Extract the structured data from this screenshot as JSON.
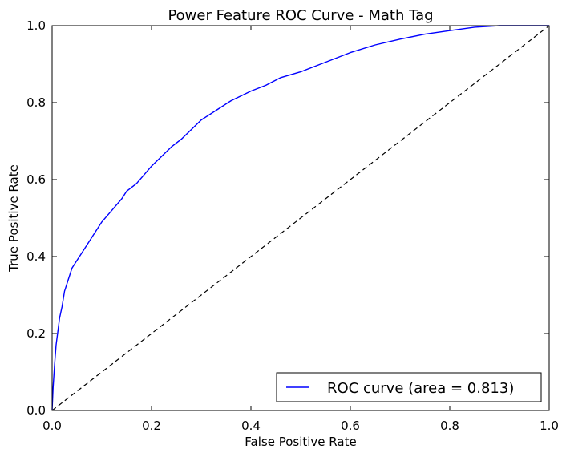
{
  "chart_data": {
    "type": "line",
    "title": "Power Feature ROC Curve - Math Tag",
    "xlabel": "False Positive Rate",
    "ylabel": "True Positive Rate",
    "xlim": [
      0.0,
      1.0
    ],
    "ylim": [
      0.0,
      1.0
    ],
    "xticks": [
      "0.0",
      "0.2",
      "0.4",
      "0.6",
      "0.8",
      "1.0"
    ],
    "yticks": [
      "0.0",
      "0.2",
      "0.4",
      "0.6",
      "0.8",
      "1.0"
    ],
    "grid": false,
    "legend_position": "lower-right",
    "series": [
      {
        "name": "ROC curve (area = 0.813)",
        "color": "#0000ff",
        "style": "solid",
        "x": [
          0.0,
          0.002,
          0.005,
          0.008,
          0.012,
          0.015,
          0.02,
          0.025,
          0.03,
          0.04,
          0.05,
          0.06,
          0.07,
          0.08,
          0.09,
          0.1,
          0.12,
          0.14,
          0.15,
          0.17,
          0.19,
          0.2,
          0.22,
          0.24,
          0.26,
          0.28,
          0.3,
          0.33,
          0.36,
          0.4,
          0.43,
          0.46,
          0.5,
          0.55,
          0.6,
          0.65,
          0.7,
          0.75,
          0.8,
          0.85,
          0.9,
          0.95,
          1.0
        ],
        "y": [
          0.0,
          0.06,
          0.12,
          0.17,
          0.21,
          0.24,
          0.27,
          0.31,
          0.33,
          0.37,
          0.39,
          0.41,
          0.43,
          0.45,
          0.47,
          0.49,
          0.52,
          0.55,
          0.57,
          0.59,
          0.62,
          0.635,
          0.66,
          0.685,
          0.705,
          0.73,
          0.755,
          0.78,
          0.805,
          0.83,
          0.845,
          0.865,
          0.88,
          0.905,
          0.93,
          0.95,
          0.965,
          0.978,
          0.987,
          0.996,
          1.0,
          1.0,
          1.0
        ]
      },
      {
        "name": "",
        "color": "#000000",
        "style": "dashed",
        "x": [
          0.0,
          1.0
        ],
        "y": [
          0.0,
          1.0
        ]
      }
    ]
  }
}
